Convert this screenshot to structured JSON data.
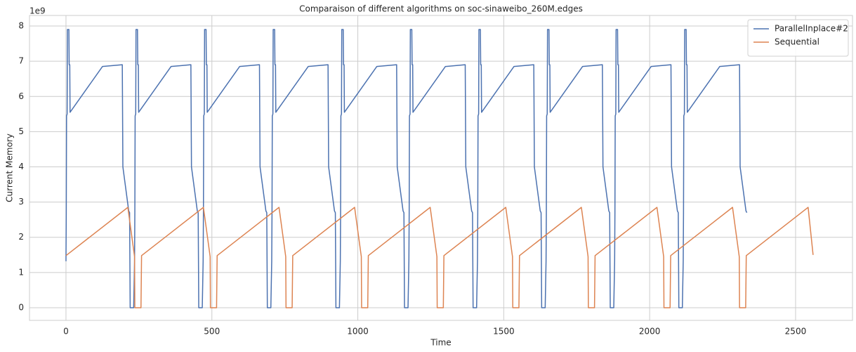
{
  "chart_data": {
    "type": "line",
    "title": "Comparaison of different algorithms on soc-sinaweibo_260M.edges",
    "x_label": "Time",
    "y_label": "Current Memory",
    "y_offset_label": "1e9",
    "xlim": [
      -125,
      2695
    ],
    "ylim": [
      -0.36,
      8.3
    ],
    "xticks": [
      0,
      500,
      1000,
      1500,
      2000,
      2500
    ],
    "yticks": [
      0,
      1,
      2,
      3,
      4,
      5,
      6,
      7,
      8
    ],
    "grid": true,
    "legend_loc": "upper right",
    "series": [
      {
        "name": "ParallelInplace#2",
        "color": "#4c72b0",
        "x": [
          0,
          1,
          2,
          4,
          5,
          10,
          11,
          13,
          14,
          125,
          193,
          195,
          215,
          218,
          220,
          232,
          235,
          236,
          237,
          239,
          240,
          245,
          246,
          248,
          249,
          360,
          428,
          430,
          450,
          453,
          455,
          467,
          470,
          471,
          472,
          474,
          475,
          480,
          481,
          483,
          484,
          595,
          663,
          665,
          685,
          688,
          690,
          702,
          705,
          706,
          707,
          709,
          710,
          715,
          716,
          718,
          719,
          830,
          898,
          900,
          920,
          923,
          925,
          937,
          940,
          941,
          942,
          944,
          945,
          950,
          951,
          953,
          954,
          1065,
          1133,
          1135,
          1155,
          1158,
          1160,
          1172,
          1175,
          1176,
          1177,
          1179,
          1180,
          1185,
          1186,
          1188,
          1189,
          1300,
          1368,
          1370,
          1390,
          1393,
          1395,
          1407,
          1410,
          1411,
          1412,
          1414,
          1415,
          1420,
          1421,
          1423,
          1424,
          1535,
          1603,
          1605,
          1625,
          1628,
          1630,
          1642,
          1645,
          1646,
          1647,
          1649,
          1650,
          1655,
          1656,
          1658,
          1659,
          1770,
          1838,
          1840,
          1860,
          1863,
          1865,
          1877,
          1880,
          1881,
          1882,
          1884,
          1885,
          1890,
          1891,
          1893,
          1894,
          2005,
          2073,
          2075,
          2095,
          2098,
          2100,
          2112,
          2115,
          2116,
          2117,
          2119,
          2120,
          2125,
          2126,
          2128,
          2129,
          2240,
          2308,
          2310,
          2330,
          2333
        ],
        "values": [
          1.32,
          2.7,
          5.45,
          5.5,
          7.9,
          7.9,
          6.9,
          6.9,
          5.55,
          6.85,
          6.9,
          4.0,
          2.75,
          2.7,
          0,
          0,
          1.32,
          2.7,
          5.45,
          5.5,
          7.9,
          7.9,
          6.9,
          6.9,
          5.55,
          6.85,
          6.9,
          4.0,
          2.75,
          2.7,
          0,
          0,
          1.32,
          2.7,
          5.45,
          5.5,
          7.9,
          7.9,
          6.9,
          6.9,
          5.55,
          6.85,
          6.9,
          4.0,
          2.75,
          2.7,
          0,
          0,
          1.32,
          2.7,
          5.45,
          5.5,
          7.9,
          7.9,
          6.9,
          6.9,
          5.55,
          6.85,
          6.9,
          4.0,
          2.75,
          2.7,
          0,
          0,
          1.32,
          2.7,
          5.45,
          5.5,
          7.9,
          7.9,
          6.9,
          6.9,
          5.55,
          6.85,
          6.9,
          4.0,
          2.75,
          2.7,
          0,
          0,
          1.32,
          2.7,
          5.45,
          5.5,
          7.9,
          7.9,
          6.9,
          6.9,
          5.55,
          6.85,
          6.9,
          4.0,
          2.75,
          2.7,
          0,
          0,
          1.32,
          2.7,
          5.45,
          5.5,
          7.9,
          7.9,
          6.9,
          6.9,
          5.55,
          6.85,
          6.9,
          4.0,
          2.75,
          2.7,
          0,
          0,
          1.32,
          2.7,
          5.45,
          5.5,
          7.9,
          7.9,
          6.9,
          6.9,
          5.55,
          6.85,
          6.9,
          4.0,
          2.75,
          2.7,
          0,
          0,
          1.32,
          2.7,
          5.45,
          5.5,
          7.9,
          7.9,
          6.9,
          6.9,
          5.55,
          6.85,
          6.9,
          4.0,
          2.75,
          2.7,
          0,
          0,
          1.32,
          2.7,
          5.45,
          5.5,
          7.9,
          7.9,
          6.9,
          6.9,
          5.55,
          6.85,
          6.9,
          4.0,
          2.75,
          2.7
        ]
      },
      {
        "name": "Sequential",
        "color": "#dd8452",
        "x": [
          0,
          212,
          235,
          236,
          257,
          259,
          471,
          494,
          495,
          516,
          518,
          730,
          753,
          754,
          775,
          777,
          989,
          1012,
          1013,
          1034,
          1036,
          1248,
          1271,
          1272,
          1293,
          1295,
          1507,
          1530,
          1531,
          1552,
          1554,
          1766,
          1789,
          1790,
          1811,
          1813,
          2025,
          2048,
          2049,
          2070,
          2072,
          2284,
          2307,
          2308,
          2329,
          2331,
          2543,
          2560
        ],
        "values": [
          1.48,
          2.85,
          1.45,
          0,
          0,
          1.48,
          2.85,
          1.45,
          0,
          0,
          1.48,
          2.85,
          1.45,
          0,
          0,
          1.48,
          2.85,
          1.45,
          0,
          0,
          1.48,
          2.85,
          1.45,
          0,
          0,
          1.48,
          2.85,
          1.45,
          0,
          0,
          1.48,
          2.85,
          1.45,
          0,
          0,
          1.48,
          2.85,
          1.45,
          0,
          0,
          1.48,
          2.85,
          1.45,
          0,
          0,
          1.48,
          2.85,
          1.5
        ]
      }
    ]
  }
}
